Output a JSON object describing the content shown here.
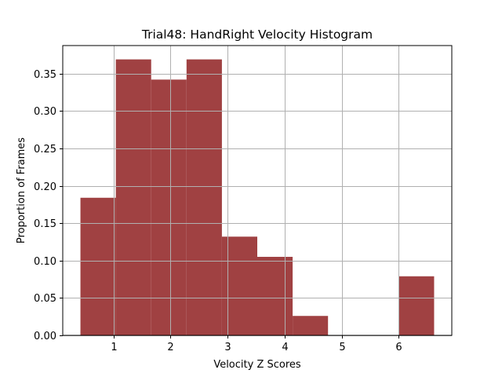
{
  "chart_data": {
    "type": "bar",
    "title": "Trial48: HandRight Velocity Histogram",
    "xlabel": "Velocity Z Scores",
    "ylabel": "Proportion of Frames",
    "bin_edges": [
      0.42,
      1.04,
      1.66,
      2.28,
      2.9,
      3.52,
      4.14,
      4.76,
      5.38,
      6.0,
      6.62
    ],
    "values": [
      0.184,
      0.369,
      0.342,
      0.369,
      0.132,
      0.105,
      0.026,
      0.0,
      0.0,
      0.079
    ],
    "xlim": [
      0.11,
      6.93
    ],
    "ylim": [
      0,
      0.3875
    ],
    "xticks": [
      1,
      2,
      3,
      4,
      5,
      6
    ],
    "xtick_labels": [
      "1",
      "2",
      "3",
      "4",
      "5",
      "6"
    ],
    "yticks": [
      0,
      0.05,
      0.1,
      0.15,
      0.2,
      0.25,
      0.3,
      0.35
    ],
    "ytick_labels": [
      "0.00",
      "0.05",
      "0.10",
      "0.15",
      "0.20",
      "0.25",
      "0.30",
      "0.35"
    ],
    "grid": true,
    "bar_color": "#a04142",
    "grid_color": "#b0b0b0"
  }
}
